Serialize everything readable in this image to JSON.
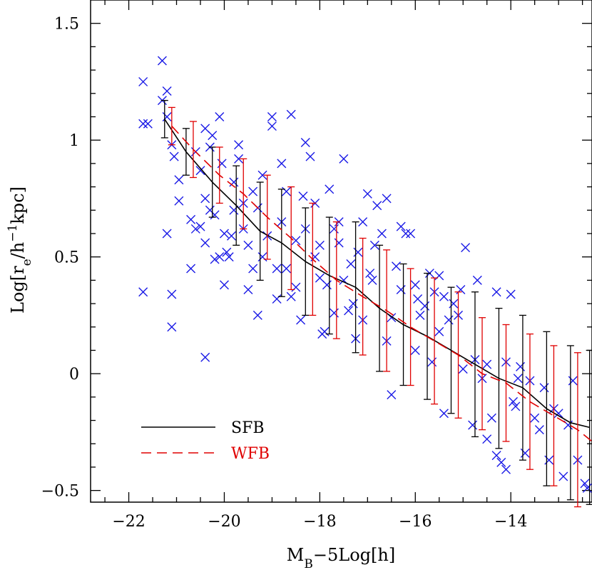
{
  "chart_data": {
    "type": "scatter",
    "xlabel": {
      "main": "M",
      "sub": "B",
      "rest": "−5Log[h]"
    },
    "ylabel": {
      "pre": "Log[r",
      "sub": "e",
      "mid": "/h",
      "sup": "−1",
      "post": "kpc]"
    },
    "xlim": [
      -22.8,
      -12.3
    ],
    "ylim": [
      -0.55,
      1.6
    ],
    "xticks": [
      -22,
      -20,
      -18,
      -16,
      -14
    ],
    "xtick_labels": [
      "−22",
      "−20",
      "−18",
      "−16",
      "−14"
    ],
    "yticks": [
      -0.5,
      0,
      0.5,
      1,
      1.5
    ],
    "ytick_labels": [
      "−0.5",
      "0",
      "0.5",
      "1",
      "1.5"
    ],
    "grid": false,
    "legend_position": "bottom-left",
    "colors": {
      "scatter": "#1a1ae6",
      "sfb": "#000000",
      "wfb": "#e00000"
    },
    "series": [
      {
        "name": "SFB",
        "style": "solid",
        "x": [
          -21.25,
          -20.8,
          -20.25,
          -19.75,
          -19.25,
          -18.8,
          -18.3,
          -17.8,
          -17.25,
          -16.75,
          -16.25,
          -15.75,
          -15.25,
          -14.75,
          -14.25,
          -13.75,
          -13.25,
          -12.75,
          -12.35
        ],
        "y": [
          1.09,
          0.95,
          0.82,
          0.72,
          0.61,
          0.56,
          0.48,
          0.42,
          0.37,
          0.28,
          0.21,
          0.16,
          0.1,
          0.04,
          -0.02,
          -0.06,
          -0.15,
          -0.21,
          -0.23
        ],
        "err": [
          0.08,
          0.1,
          0.15,
          0.17,
          0.21,
          0.23,
          0.23,
          0.25,
          0.28,
          0.27,
          0.26,
          0.27,
          0.27,
          0.31,
          0.3,
          0.31,
          0.33,
          0.33,
          0.33
        ]
      },
      {
        "name": "WFB",
        "style": "dashed",
        "x": [
          -21.1,
          -20.65,
          -20.1,
          -19.6,
          -19.1,
          -18.6,
          -18.15,
          -17.65,
          -17.1,
          -16.6,
          -16.1,
          -15.6,
          -15.1,
          -14.6,
          -14.1,
          -13.6,
          -13.1,
          -12.6,
          -12.3
        ],
        "y": [
          1.06,
          0.96,
          0.85,
          0.77,
          0.67,
          0.58,
          0.49,
          0.4,
          0.33,
          0.27,
          0.2,
          0.14,
          0.08,
          0.0,
          -0.04,
          -0.12,
          -0.18,
          -0.24,
          -0.29
        ],
        "err": [
          0.08,
          0.12,
          0.12,
          0.15,
          0.18,
          0.22,
          0.24,
          0.25,
          0.25,
          0.26,
          0.25,
          0.27,
          0.27,
          0.24,
          0.25,
          0.29,
          0.3,
          0.33,
          0.33
        ]
      }
    ],
    "points": [
      {
        "x": -21.7,
        "y": 1.25
      },
      {
        "x": -21.3,
        "y": 1.34
      },
      {
        "x": -21.2,
        "y": 1.21
      },
      {
        "x": -21.7,
        "y": 1.07
      },
      {
        "x": -21.6,
        "y": 1.07
      },
      {
        "x": -21.2,
        "y": 1.1
      },
      {
        "x": -21.1,
        "y": 0.98
      },
      {
        "x": -21.3,
        "y": 1.17
      },
      {
        "x": -21.05,
        "y": 0.93
      },
      {
        "x": -20.95,
        "y": 0.83
      },
      {
        "x": -21.2,
        "y": 0.6
      },
      {
        "x": -21.1,
        "y": 0.34
      },
      {
        "x": -21.7,
        "y": 0.35
      },
      {
        "x": -21.1,
        "y": 0.2
      },
      {
        "x": -20.4,
        "y": 0.07
      },
      {
        "x": -20.95,
        "y": 0.74
      },
      {
        "x": -20.7,
        "y": 0.66
      },
      {
        "x": -20.7,
        "y": 0.45
      },
      {
        "x": -20.6,
        "y": 0.62
      },
      {
        "x": -20.5,
        "y": 0.63
      },
      {
        "x": -20.4,
        "y": 0.75
      },
      {
        "x": -20.3,
        "y": 0.7
      },
      {
        "x": -20.2,
        "y": 0.68
      },
      {
        "x": -20.5,
        "y": 0.87
      },
      {
        "x": -20.4,
        "y": 1.05
      },
      {
        "x": -20.3,
        "y": 0.97
      },
      {
        "x": -20.25,
        "y": 1.02
      },
      {
        "x": -20.1,
        "y": 1.1
      },
      {
        "x": -20.4,
        "y": 0.56
      },
      {
        "x": -20.2,
        "y": 0.49
      },
      {
        "x": -20.1,
        "y": 0.5
      },
      {
        "x": -20.0,
        "y": 0.6
      },
      {
        "x": -19.95,
        "y": 0.52
      },
      {
        "x": -20.0,
        "y": 0.38
      },
      {
        "x": -19.85,
        "y": 0.59
      },
      {
        "x": -19.8,
        "y": 0.7
      },
      {
        "x": -19.8,
        "y": 0.82
      },
      {
        "x": -19.7,
        "y": 0.92
      },
      {
        "x": -19.7,
        "y": 0.98
      },
      {
        "x": -19.6,
        "y": 0.73
      },
      {
        "x": -19.6,
        "y": 0.62
      },
      {
        "x": -19.5,
        "y": 0.55
      },
      {
        "x": -19.5,
        "y": 0.36
      },
      {
        "x": -19.4,
        "y": 0.78
      },
      {
        "x": -19.3,
        "y": 0.71
      },
      {
        "x": -19.2,
        "y": 0.85
      },
      {
        "x": -19.1,
        "y": 0.59
      },
      {
        "x": -19.0,
        "y": 1.1
      },
      {
        "x": -19.0,
        "y": 1.06
      },
      {
        "x": -18.9,
        "y": 0.45
      },
      {
        "x": -18.9,
        "y": 0.32
      },
      {
        "x": -18.8,
        "y": 0.65
      },
      {
        "x": -18.8,
        "y": 0.9
      },
      {
        "x": -18.7,
        "y": 0.78
      },
      {
        "x": -18.6,
        "y": 1.11
      },
      {
        "x": -18.5,
        "y": 0.57
      },
      {
        "x": -18.5,
        "y": 0.37
      },
      {
        "x": -18.4,
        "y": 0.23
      },
      {
        "x": -18.3,
        "y": 0.62
      },
      {
        "x": -18.3,
        "y": 0.99
      },
      {
        "x": -18.2,
        "y": 0.93
      },
      {
        "x": -18.1,
        "y": 0.73
      },
      {
        "x": -18.1,
        "y": 0.5
      },
      {
        "x": -18.0,
        "y": 0.41
      },
      {
        "x": -17.9,
        "y": 0.18
      },
      {
        "x": -17.85,
        "y": 0.38
      },
      {
        "x": -17.8,
        "y": 0.79
      },
      {
        "x": -17.7,
        "y": 0.62
      },
      {
        "x": -17.6,
        "y": 0.56
      },
      {
        "x": -17.5,
        "y": 0.92
      },
      {
        "x": -17.5,
        "y": 0.4
      },
      {
        "x": -17.4,
        "y": 0.27
      },
      {
        "x": -17.3,
        "y": 0.3
      },
      {
        "x": -17.25,
        "y": 0.15
      },
      {
        "x": -17.2,
        "y": 0.52
      },
      {
        "x": -17.1,
        "y": 0.65
      },
      {
        "x": -17.0,
        "y": 0.77
      },
      {
        "x": -16.9,
        "y": 0.4
      },
      {
        "x": -16.8,
        "y": 0.72
      },
      {
        "x": -16.7,
        "y": 0.6
      },
      {
        "x": -16.6,
        "y": 0.75
      },
      {
        "x": -16.5,
        "y": 0.24
      },
      {
        "x": -16.5,
        "y": -0.09
      },
      {
        "x": -16.4,
        "y": 0.46
      },
      {
        "x": -16.3,
        "y": 0.63
      },
      {
        "x": -16.2,
        "y": 0.6
      },
      {
        "x": -16.1,
        "y": 0.6
      },
      {
        "x": -16.0,
        "y": 0.38
      },
      {
        "x": -15.9,
        "y": 0.25
      },
      {
        "x": -15.8,
        "y": 0.29
      },
      {
        "x": -15.7,
        "y": 0.43
      },
      {
        "x": -15.6,
        "y": 0.35
      },
      {
        "x": -15.5,
        "y": 0.42
      },
      {
        "x": -15.4,
        "y": 0.33
      },
      {
        "x": -15.4,
        "y": -0.17
      },
      {
        "x": -15.3,
        "y": 0.23
      },
      {
        "x": -15.2,
        "y": 0.3
      },
      {
        "x": -15.1,
        "y": 0.25
      },
      {
        "x": -15.0,
        "y": 0.02
      },
      {
        "x": -14.95,
        "y": 0.54
      },
      {
        "x": -14.7,
        "y": 0.4
      },
      {
        "x": -14.6,
        "y": -0.02
      },
      {
        "x": -14.5,
        "y": 0.04
      },
      {
        "x": -14.4,
        "y": -0.19
      },
      {
        "x": -14.3,
        "y": 0.35
      },
      {
        "x": -14.3,
        "y": -0.35
      },
      {
        "x": -14.2,
        "y": -0.38
      },
      {
        "x": -14.1,
        "y": 0.05
      },
      {
        "x": -14.0,
        "y": 0.34
      },
      {
        "x": -13.9,
        "y": -0.14
      },
      {
        "x": -13.8,
        "y": 0.03
      },
      {
        "x": -13.7,
        "y": -0.34
      },
      {
        "x": -13.6,
        "y": -0.03
      },
      {
        "x": -13.5,
        "y": -0.19
      },
      {
        "x": -13.4,
        "y": -0.24
      },
      {
        "x": -13.3,
        "y": -0.06
      },
      {
        "x": -13.2,
        "y": -0.37
      },
      {
        "x": -13.1,
        "y": -0.15
      },
      {
        "x": -13.0,
        "y": -0.17
      },
      {
        "x": -12.9,
        "y": -0.44
      },
      {
        "x": -12.8,
        "y": -0.22
      },
      {
        "x": -12.7,
        "y": -0.03
      },
      {
        "x": -12.6,
        "y": -0.37
      },
      {
        "x": -12.45,
        "y": -0.47
      },
      {
        "x": -12.4,
        "y": -0.49
      },
      {
        "x": -19.9,
        "y": 0.5
      },
      {
        "x": -19.4,
        "y": 0.45
      },
      {
        "x": -18.6,
        "y": 0.33
      },
      {
        "x": -18.0,
        "y": 0.55
      },
      {
        "x": -17.7,
        "y": 0.26
      },
      {
        "x": -17.1,
        "y": 0.23
      },
      {
        "x": -16.6,
        "y": 0.14
      },
      {
        "x": -16.0,
        "y": 0.1
      },
      {
        "x": -15.5,
        "y": 0.18
      },
      {
        "x": -14.8,
        "y": -0.22
      },
      {
        "x": -14.1,
        "y": -0.41
      },
      {
        "x": -20.6,
        "y": 0.95
      },
      {
        "x": -20.05,
        "y": 0.9
      },
      {
        "x": -19.3,
        "y": 0.25
      },
      {
        "x": -18.7,
        "y": 0.45
      },
      {
        "x": -17.95,
        "y": 0.17
      },
      {
        "x": -17.35,
        "y": 0.47
      },
      {
        "x": -16.85,
        "y": 0.55
      },
      {
        "x": -16.3,
        "y": 0.36
      },
      {
        "x": -15.65,
        "y": 0.05
      },
      {
        "x": -15.05,
        "y": 0.36
      },
      {
        "x": -14.5,
        "y": -0.28
      },
      {
        "x": -13.95,
        "y": -0.12
      },
      {
        "x": -19.2,
        "y": 0.5
      },
      {
        "x": -18.35,
        "y": 0.76
      },
      {
        "x": -17.6,
        "y": 0.65
      },
      {
        "x": -16.95,
        "y": 0.43
      },
      {
        "x": -15.95,
        "y": 0.32
      },
      {
        "x": -14.75,
        "y": 0.06
      },
      {
        "x": -13.85,
        "y": -0.02
      }
    ]
  },
  "legend": [
    {
      "label": "SFB",
      "color": "#000000"
    },
    {
      "label": "WFB",
      "color": "#e00000"
    }
  ]
}
